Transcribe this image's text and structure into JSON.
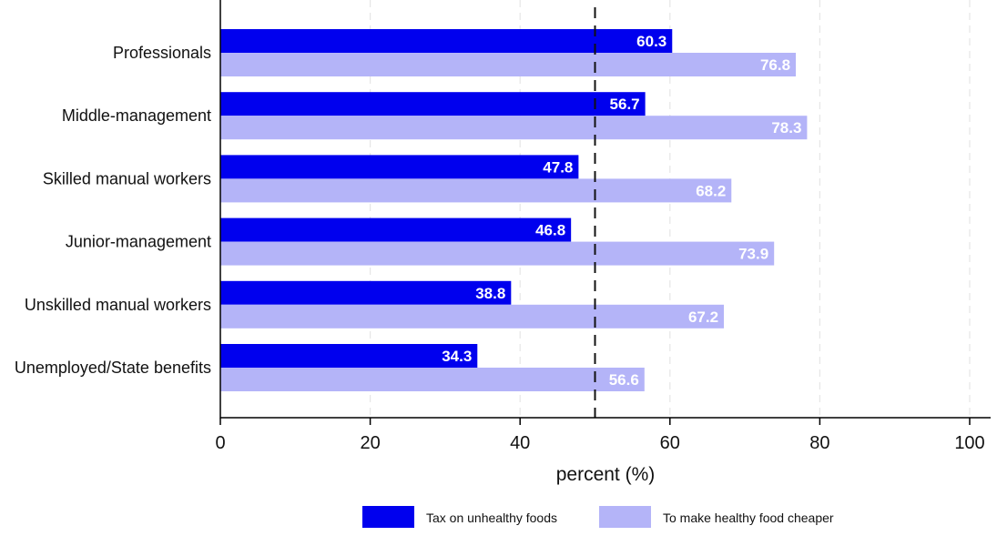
{
  "chart_data": {
    "type": "bar",
    "orientation": "horizontal",
    "categories": [
      "Professionals",
      "Middle-management",
      "Skilled manual workers",
      "Junior-management",
      "Unskilled manual workers",
      "Unemployed/State benefits"
    ],
    "series": [
      {
        "name": "Tax on unhealthy foods",
        "color": "#0000ee",
        "values": [
          60.3,
          56.7,
          47.8,
          46.8,
          38.8,
          34.3
        ]
      },
      {
        "name": "To make healthy food cheaper",
        "color": "#b4b4f8",
        "values": [
          76.8,
          78.3,
          68.2,
          73.9,
          67.2,
          56.6
        ]
      }
    ],
    "value_labels": {
      "Tax on unhealthy foods": [
        "60.3",
        "56.7",
        "47.8",
        "46.8",
        "38.8",
        "34.3"
      ],
      "To make healthy food cheaper": [
        "76.8",
        "78.3",
        "68.2",
        "73.9",
        "67.2",
        "56.6"
      ]
    },
    "xlabel": "percent (%)",
    "ylabel": "",
    "title": "",
    "xlim": [
      0,
      100
    ],
    "xticks": [
      0,
      20,
      40,
      60,
      80,
      100
    ],
    "xtick_labels": [
      "0",
      "20",
      "40",
      "60",
      "80",
      "100"
    ],
    "reference_line": {
      "x": 50,
      "style": "dashed",
      "color": "#111111"
    },
    "grid": "vertical dashed light",
    "legend_position": "bottom-center"
  }
}
